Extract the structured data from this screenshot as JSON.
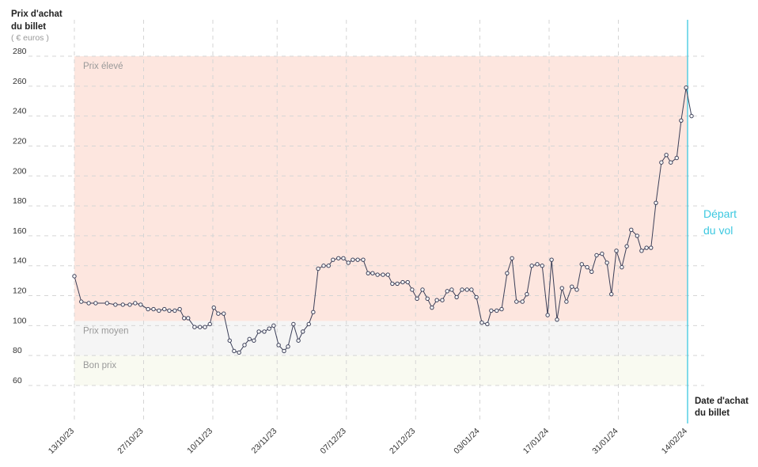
{
  "chart_data": {
    "type": "line",
    "y_title": [
      "Prix d'achat",
      "du billet"
    ],
    "y_unit": "( € euros )",
    "x_title": [
      "Date d'achat",
      "du billet"
    ],
    "annotation": {
      "lines": [
        "Départ",
        "du vol"
      ],
      "x": 124,
      "color": "#3cc8e0"
    },
    "xlim": [
      0,
      124
    ],
    "ylim": [
      60,
      280
    ],
    "yticks": [
      60,
      80,
      100,
      120,
      140,
      160,
      180,
      200,
      220,
      240,
      260,
      280
    ],
    "xticks": [
      {
        "value": 0,
        "label": "13/10/23"
      },
      {
        "value": 14,
        "label": "27/10/23"
      },
      {
        "value": 28,
        "label": "10/11/23"
      },
      {
        "value": 41,
        "label": "23/11/23"
      },
      {
        "value": 55,
        "label": "07/12/23"
      },
      {
        "value": 69,
        "label": "21/12/23"
      },
      {
        "value": 82,
        "label": "03/01/24"
      },
      {
        "value": 96,
        "label": "17/01/24"
      },
      {
        "value": 110,
        "label": "31/01/24"
      },
      {
        "value": 124,
        "label": "14/02/24"
      }
    ],
    "zones": [
      {
        "label": "Prix élevé",
        "from": 103,
        "to": 280,
        "color": "#fde6df"
      },
      {
        "label": "Prix moyen",
        "from": 80,
        "to": 103,
        "color": "#f5f5f5"
      },
      {
        "label": "Bon prix",
        "from": 60,
        "to": 80,
        "color": "#f9faf1"
      }
    ],
    "grid": true,
    "series": [
      {
        "name": "Prix",
        "color": "#3b3f58",
        "x": [
          0,
          1.4,
          2.9,
          4.3,
          6.6,
          8.3,
          9.8,
          11.2,
          12.3,
          13.4,
          14.9,
          16,
          17.1,
          18.2,
          19.2,
          20.3,
          21.3,
          22.2,
          23,
          24.3,
          25.4,
          26.4,
          27.4,
          28.2,
          29.1,
          30.2,
          31.4,
          32.3,
          33.3,
          34.4,
          35.4,
          36.3,
          37.3,
          38.4,
          39.4,
          40.3,
          41.3,
          42.4,
          43.2,
          44.3,
          45.3,
          46.2,
          47.4,
          48.3,
          49.3,
          50.4,
          51.4,
          52.3,
          53.4,
          54.4,
          55.4,
          56.3,
          57.3,
          58.4,
          59.4,
          60.3,
          61.3,
          62.4,
          63.4,
          64.3,
          65.3,
          66.4,
          67.4,
          68.3,
          69.3,
          70.4,
          71.4,
          72.3,
          73.3,
          74.4,
          75.4,
          76.3,
          77.3,
          78.4,
          79.4,
          80.3,
          81.3,
          82.4,
          83.5,
          84.3,
          85.4,
          86.4,
          87.5,
          88.5,
          89.4,
          90.6,
          91.5,
          92.5,
          93.6,
          94.6,
          95.7,
          96.5,
          97.6,
          98.6,
          99.5,
          100.6,
          101.6,
          102.6,
          103.7,
          104.6,
          105.6,
          106.7,
          107.7,
          108.6,
          109.6,
          110.7,
          111.7,
          112.6,
          113.8,
          114.7,
          115.7,
          116.6,
          117.6,
          118.7,
          119.7,
          120.6,
          121.8,
          122.7,
          123.7,
          124.8
        ],
        "values": [
          133,
          116,
          115,
          115,
          115,
          114,
          114,
          114,
          115,
          114,
          111,
          111,
          110,
          111,
          110,
          110,
          111,
          105,
          105,
          99,
          99,
          99,
          101,
          112,
          108,
          108,
          90,
          83,
          82,
          87,
          91,
          90,
          96,
          96,
          98,
          100,
          87,
          83,
          86,
          101,
          90,
          96,
          101,
          109,
          138,
          140,
          140,
          144,
          145,
          145,
          142,
          144,
          144,
          144,
          135,
          135,
          134,
          134,
          134,
          128,
          128,
          129,
          129,
          124,
          118,
          124,
          118,
          112,
          117,
          117,
          123,
          124,
          119,
          124,
          124,
          124,
          119,
          102,
          101,
          110,
          110,
          111,
          135,
          145,
          116,
          116,
          121,
          140,
          141,
          140,
          107,
          144,
          104,
          125,
          116,
          126,
          124,
          141,
          139,
          136,
          147,
          148,
          142,
          121,
          150,
          139,
          153,
          164,
          160,
          150,
          152,
          152,
          182,
          209,
          214,
          209,
          212,
          237,
          259,
          240
        ]
      }
    ]
  }
}
